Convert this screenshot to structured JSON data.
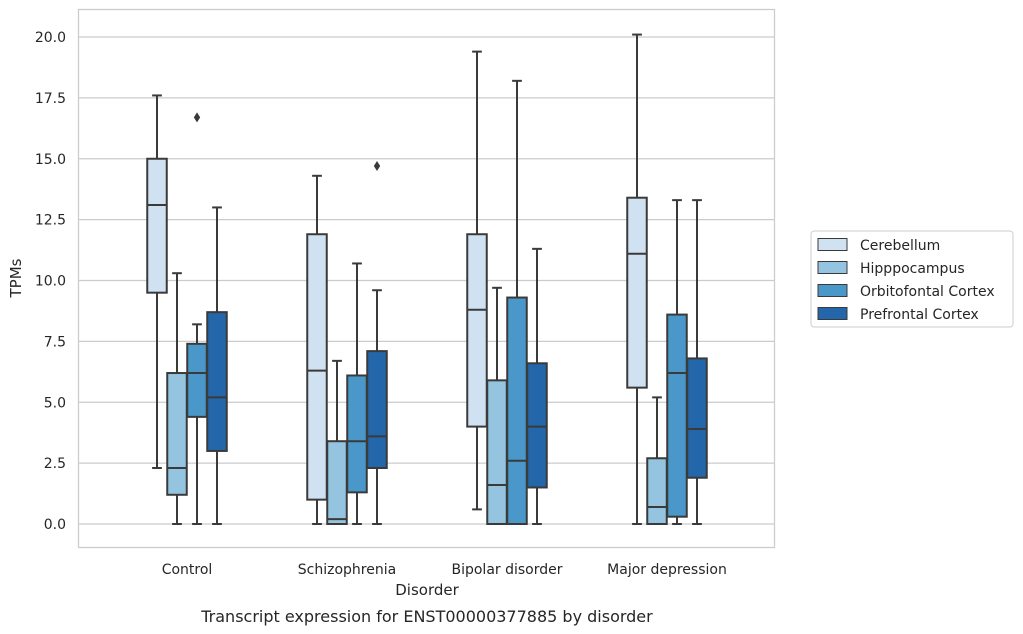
{
  "chart_data": {
    "type": "boxplot",
    "xlabel": "Disorder",
    "ylabel": "TPMs",
    "caption": "Transcript expression for ENST00000377885 by disorder",
    "ylim": [
      -1,
      21
    ],
    "yticks": [
      "0.0",
      "2.5",
      "5.0",
      "7.5",
      "10.0",
      "12.5",
      "15.0",
      "17.5",
      "20.0"
    ],
    "grid": "horizontal",
    "legend_position": "right",
    "categories": [
      "Control",
      "Schizophrenia",
      "Bipolar disorder",
      "Major depression"
    ],
    "series": [
      {
        "name": "Cerebellum",
        "color": "#d0e1f2",
        "boxes": [
          {
            "whislo": 2.3,
            "q1": 9.5,
            "med": 13.1,
            "q3": 15.0,
            "whishi": 17.6,
            "fliers": []
          },
          {
            "whislo": 0.0,
            "q1": 1.0,
            "med": 6.3,
            "q3": 11.9,
            "whishi": 14.3,
            "fliers": []
          },
          {
            "whislo": 0.6,
            "q1": 4.0,
            "med": 8.8,
            "q3": 11.9,
            "whishi": 19.4,
            "fliers": []
          },
          {
            "whislo": 0.0,
            "q1": 5.6,
            "med": 11.1,
            "q3": 13.4,
            "whishi": 20.1,
            "fliers": []
          }
        ]
      },
      {
        "name": "Hipppocampus",
        "color": "#94c4df",
        "boxes": [
          {
            "whislo": 0.0,
            "q1": 1.2,
            "med": 2.3,
            "q3": 6.2,
            "whishi": 10.3,
            "fliers": []
          },
          {
            "whislo": 0.0,
            "q1": 0.0,
            "med": 0.2,
            "q3": 3.4,
            "whishi": 6.7,
            "fliers": []
          },
          {
            "whislo": 0.0,
            "q1": 0.0,
            "med": 1.6,
            "q3": 5.9,
            "whishi": 9.7,
            "fliers": []
          },
          {
            "whislo": 0.0,
            "q1": 0.0,
            "med": 0.7,
            "q3": 2.7,
            "whishi": 5.2,
            "fliers": []
          }
        ]
      },
      {
        "name": "Orbitofontal Cortex",
        "color": "#4a98c9",
        "boxes": [
          {
            "whislo": 0.0,
            "q1": 4.4,
            "med": 6.2,
            "q3": 7.4,
            "whishi": 8.2,
            "fliers": [
              16.7
            ]
          },
          {
            "whislo": 0.0,
            "q1": 1.3,
            "med": 3.4,
            "q3": 6.1,
            "whishi": 10.7,
            "fliers": []
          },
          {
            "whislo": 0.0,
            "q1": 0.0,
            "med": 2.6,
            "q3": 9.3,
            "whishi": 18.2,
            "fliers": []
          },
          {
            "whislo": 0.0,
            "q1": 0.3,
            "med": 6.2,
            "q3": 8.6,
            "whishi": 13.3,
            "fliers": []
          }
        ]
      },
      {
        "name": "Prefrontal Cortex",
        "color": "#2366aa",
        "boxes": [
          {
            "whislo": 0.0,
            "q1": 3.0,
            "med": 5.2,
            "q3": 8.7,
            "whishi": 13.0,
            "fliers": []
          },
          {
            "whislo": 0.0,
            "q1": 2.3,
            "med": 3.6,
            "q3": 7.1,
            "whishi": 9.6,
            "fliers": [
              14.7
            ]
          },
          {
            "whislo": 0.0,
            "q1": 1.5,
            "med": 4.0,
            "q3": 6.6,
            "whishi": 11.3,
            "fliers": []
          },
          {
            "whislo": 0.0,
            "q1": 1.9,
            "med": 3.9,
            "q3": 6.8,
            "whishi": 13.3,
            "fliers": []
          }
        ]
      }
    ]
  }
}
